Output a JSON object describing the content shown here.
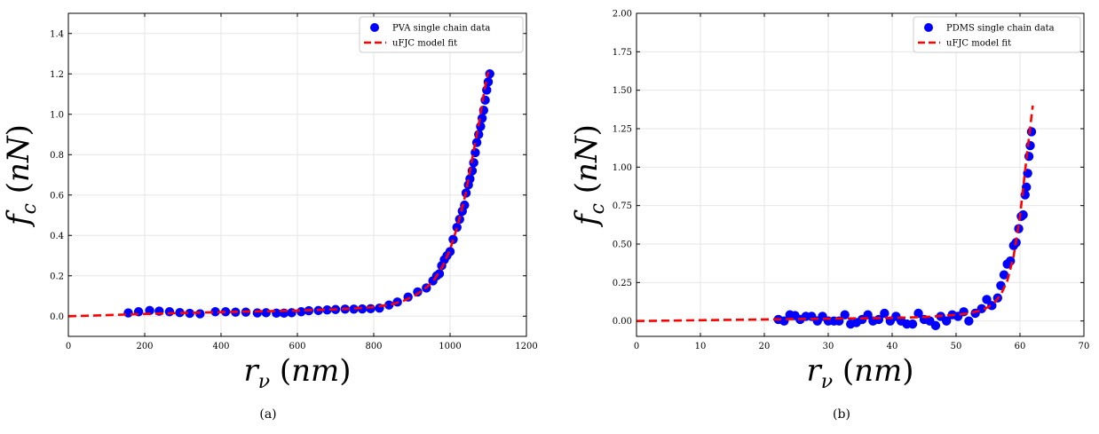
{
  "chart_data": [
    {
      "type": "scatter",
      "caption": "(a)",
      "xlabel": "r_ν (nm)",
      "ylabel": "f_c (nN)",
      "xlim": [
        0,
        1200
      ],
      "ylim": [
        -0.1,
        1.5
      ],
      "xticks": [
        "0",
        "200",
        "400",
        "600",
        "800",
        "1000",
        "1200"
      ],
      "yticks": [
        "0.0",
        "0.2",
        "0.4",
        "0.6",
        "0.8",
        "1.0",
        "1.2",
        "1.4"
      ],
      "grid": true,
      "legend_position": "top-right",
      "series": [
        {
          "name": "PVA single chain data",
          "kind": "scatter",
          "color": "#0000ff",
          "x": [
            157,
            184,
            213,
            238,
            265,
            292,
            318,
            345,
            385,
            412,
            438,
            465,
            495,
            518,
            545,
            565,
            585,
            610,
            630,
            655,
            678,
            700,
            725,
            748,
            770,
            792,
            815,
            840,
            862,
            890,
            915,
            938,
            955,
            965,
            972,
            978,
            985,
            992,
            1000,
            1008,
            1018,
            1025,
            1032,
            1038,
            1042,
            1048,
            1052,
            1058,
            1062,
            1066,
            1070,
            1075,
            1080,
            1084,
            1088,
            1092,
            1096,
            1100,
            1104
          ],
          "y": [
            0.016,
            0.022,
            0.028,
            0.025,
            0.022,
            0.018,
            0.014,
            0.012,
            0.022,
            0.022,
            0.02,
            0.02,
            0.016,
            0.017,
            0.015,
            0.015,
            0.017,
            0.022,
            0.027,
            0.028,
            0.031,
            0.033,
            0.035,
            0.035,
            0.036,
            0.037,
            0.04,
            0.055,
            0.07,
            0.095,
            0.12,
            0.14,
            0.175,
            0.2,
            0.21,
            0.25,
            0.28,
            0.3,
            0.32,
            0.38,
            0.44,
            0.48,
            0.52,
            0.55,
            0.61,
            0.65,
            0.68,
            0.72,
            0.76,
            0.81,
            0.86,
            0.9,
            0.94,
            0.98,
            1.02,
            1.07,
            1.12,
            1.16,
            1.2
          ]
        },
        {
          "name": "uFJC model fit",
          "kind": "line",
          "color": "#ff0000",
          "x": [
            0,
            100,
            200,
            300,
            400,
            500,
            600,
            700,
            750,
            800,
            850,
            880,
            910,
            940,
            960,
            980,
            1000,
            1020,
            1040,
            1060,
            1075,
            1090,
            1100
          ],
          "y": [
            0.0,
            0.005,
            0.011,
            0.016,
            0.02,
            0.024,
            0.028,
            0.034,
            0.038,
            0.045,
            0.06,
            0.078,
            0.105,
            0.145,
            0.185,
            0.245,
            0.33,
            0.45,
            0.6,
            0.8,
            0.95,
            1.12,
            1.21
          ]
        }
      ]
    },
    {
      "type": "scatter",
      "caption": "(b)",
      "xlabel": "r_ν (nm)",
      "ylabel": "f_c (nN)",
      "xlim": [
        0,
        70
      ],
      "ylim": [
        -0.1,
        2.0
      ],
      "xticks": [
        "0",
        "10",
        "20",
        "30",
        "40",
        "50",
        "60",
        "70"
      ],
      "yticks": [
        "0.00",
        "0.25",
        "0.50",
        "0.75",
        "1.00",
        "1.25",
        "1.50",
        "1.75",
        "2.00"
      ],
      "grid": true,
      "legend_position": "top-right",
      "series": [
        {
          "name": "PDMS single chain data",
          "kind": "scatter",
          "color": "#0000ff",
          "x": [
            22.2,
            23.1,
            24.0,
            24.8,
            25.6,
            26.5,
            27.4,
            28.3,
            29.1,
            30.0,
            30.9,
            31.7,
            32.6,
            33.5,
            34.4,
            35.3,
            36.2,
            37.0,
            37.9,
            38.8,
            39.7,
            40.6,
            41.4,
            42.3,
            43.2,
            44.1,
            45.0,
            45.9,
            46.8,
            47.6,
            48.5,
            49.4,
            50.3,
            51.2,
            52.0,
            53.0,
            54.0,
            54.8,
            55.6,
            56.5,
            57.0,
            57.5,
            58.0,
            58.5,
            59.0,
            59.4,
            59.8,
            60.2,
            60.5,
            60.8,
            61.0,
            61.2,
            61.4,
            61.6,
            61.8
          ],
          "y": [
            0.01,
            0.0,
            0.04,
            0.035,
            0.01,
            0.03,
            0.03,
            0.0,
            0.03,
            0.0,
            0.0,
            0.0,
            0.04,
            -0.02,
            -0.01,
            0.01,
            0.04,
            0.0,
            0.01,
            0.05,
            0.0,
            0.03,
            0.0,
            -0.02,
            -0.02,
            0.05,
            0.01,
            0.0,
            -0.03,
            0.03,
            0.0,
            0.04,
            0.03,
            0.06,
            0.0,
            0.05,
            0.08,
            0.14,
            0.1,
            0.15,
            0.23,
            0.3,
            0.37,
            0.39,
            0.49,
            0.51,
            0.6,
            0.68,
            0.69,
            0.82,
            0.87,
            0.96,
            1.07,
            1.14,
            1.23
          ]
        },
        {
          "name": "uFJC model fit",
          "kind": "line",
          "color": "#ff0000",
          "x": [
            0,
            10,
            20,
            30,
            40,
            45,
            50,
            52,
            54,
            55,
            56,
            57,
            58,
            59,
            60,
            61,
            62
          ],
          "y": [
            0.0,
            0.005,
            0.01,
            0.015,
            0.02,
            0.025,
            0.04,
            0.05,
            0.07,
            0.09,
            0.12,
            0.17,
            0.26,
            0.42,
            0.68,
            1.05,
            1.4
          ]
        }
      ]
    }
  ]
}
